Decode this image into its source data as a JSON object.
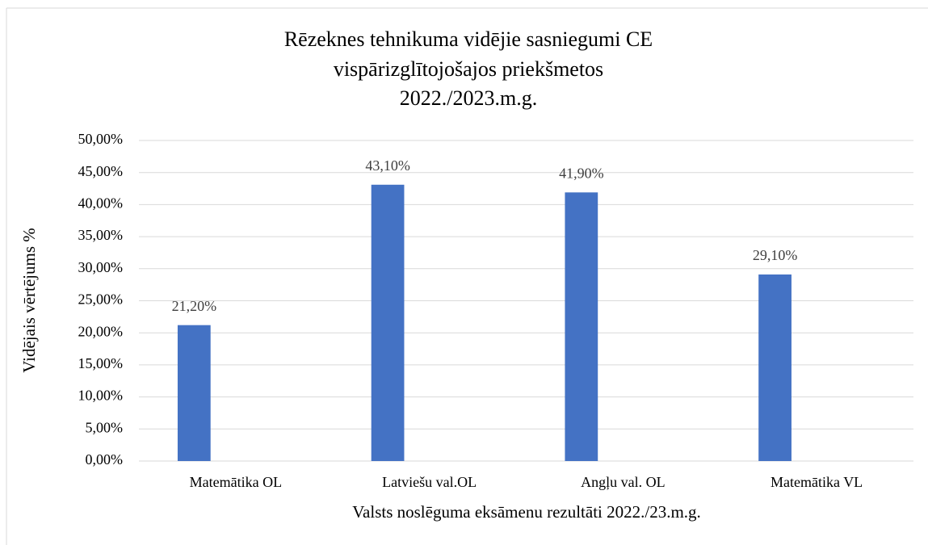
{
  "chart_data": {
    "type": "bar",
    "title": [
      "Rēzeknes tehnikuma vidējie sasniegumi CE",
      "vispārizglītojošajos priekšmetos",
      "2022./2023.m.g."
    ],
    "x_label": "Valsts noslēguma eksāmenu rezultāti 2022./23.m.g.",
    "y_label": "Vidējais vērtējums %",
    "categories": [
      "Matemātika OL",
      "Latviešu val.OL",
      "Angļu val. OL",
      "Matemātika VL"
    ],
    "values": [
      21.2,
      43.1,
      41.9,
      29.1
    ],
    "value_labels": [
      "21,20%",
      "43,10%",
      "41,90%",
      "29,10%"
    ],
    "color": "#4472c4",
    "ylim": [
      0,
      50
    ],
    "yticks": [
      {
        "value": 0,
        "label": "0,00%"
      },
      {
        "value": 5,
        "label": "5,00%"
      },
      {
        "value": 10,
        "label": "10,00%"
      },
      {
        "value": 15,
        "label": "15,00%"
      },
      {
        "value": 20,
        "label": "20,00%"
      },
      {
        "value": 25,
        "label": "25,00%"
      },
      {
        "value": 30,
        "label": "30,00%"
      },
      {
        "value": 35,
        "label": "35,00%"
      },
      {
        "value": 40,
        "label": "40,00%"
      },
      {
        "value": 45,
        "label": "45,00%"
      },
      {
        "value": 50,
        "label": "50,00%"
      }
    ],
    "grid": true
  }
}
